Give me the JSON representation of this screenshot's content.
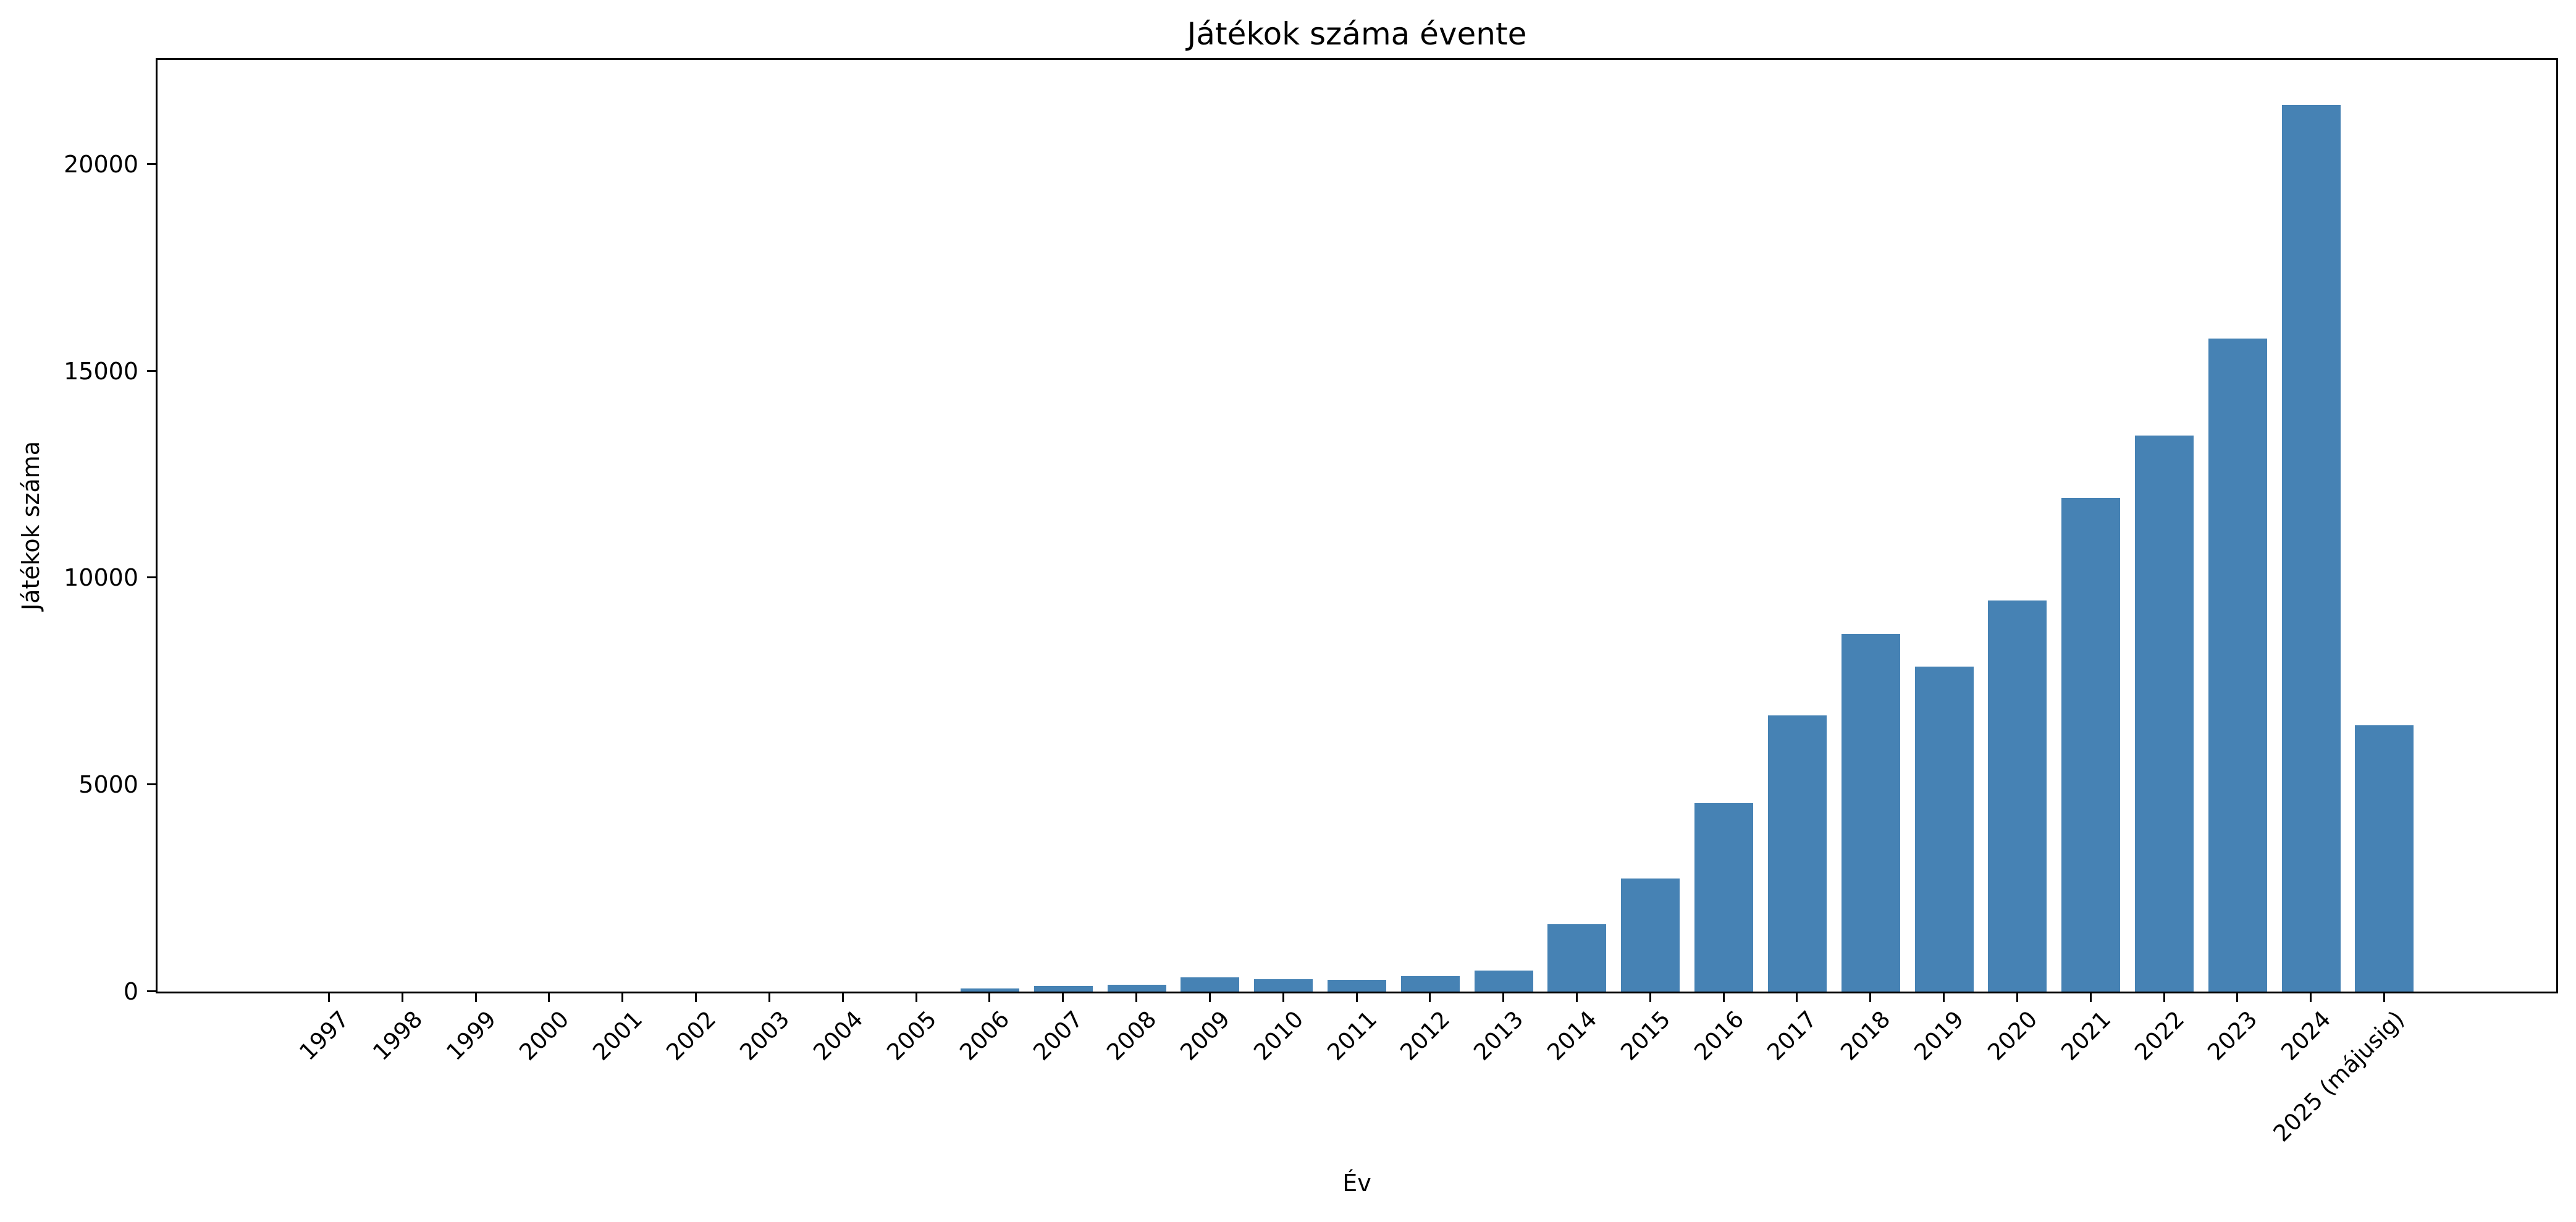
{
  "chart_data": {
    "type": "bar",
    "title": "Játékok száma évente",
    "xlabel": "Év",
    "ylabel": "Játékok száma",
    "categories": [
      "1997",
      "1998",
      "1999",
      "2000",
      "2001",
      "2002",
      "2003",
      "2004",
      "2005",
      "2006",
      "2007",
      "2008",
      "2009",
      "2010",
      "2011",
      "2012",
      "2013",
      "2014",
      "2015",
      "2016",
      "2017",
      "2018",
      "2019",
      "2020",
      "2021",
      "2022",
      "2023",
      "2024",
      "2025 (májusig)"
    ],
    "values": [
      0,
      0,
      0,
      0,
      0,
      0,
      0,
      0,
      0,
      80,
      130,
      170,
      350,
      300,
      280,
      370,
      510,
      1630,
      2730,
      4550,
      6670,
      8650,
      7850,
      9450,
      11930,
      13440,
      15790,
      21430,
      6430
    ],
    "yticks": [
      0,
      5000,
      10000,
      15000,
      20000
    ],
    "ylim": [
      0,
      22520
    ],
    "bar_color": "#4682B4",
    "axis_color": "#000000",
    "background_color": "#ffffff",
    "grid": false,
    "legend": null,
    "x_tick_rotation_deg": 45
  }
}
